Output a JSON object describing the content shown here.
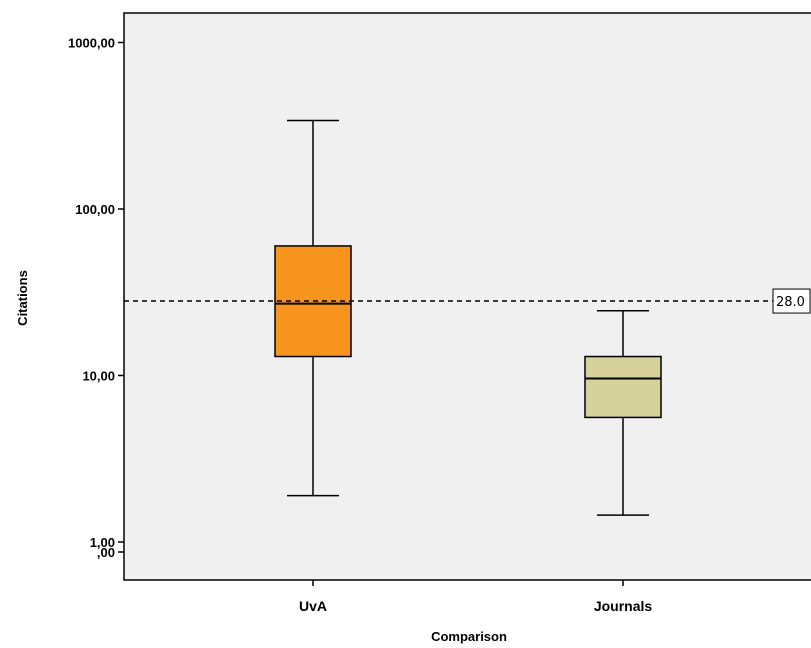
{
  "chart_data": {
    "type": "boxplot",
    "xlabel": "Comparison",
    "ylabel": "Citations",
    "y_scale": "log",
    "y_ticks": [
      {
        "value": 1000,
        "label": "1000,00"
      },
      {
        "value": 100,
        "label": "100,00"
      },
      {
        "value": 10,
        "label": "10,00"
      },
      {
        "value": 1,
        "label": "1,00"
      },
      {
        "value": 0,
        "label": ",00"
      }
    ],
    "categories": [
      "UvA",
      "Journals"
    ],
    "boxes": [
      {
        "category": "UvA",
        "whisker_low": 1.9,
        "q1": 13,
        "median": 27,
        "q3": 60,
        "whisker_high": 340,
        "color": "#f7941d"
      },
      {
        "category": "Journals",
        "whisker_low": 1.45,
        "q1": 5.6,
        "median": 9.6,
        "q3": 13,
        "whisker_high": 24.5,
        "color": "#d6d09a"
      }
    ],
    "reference_line": {
      "value": 28.0,
      "label": "28.0"
    },
    "plot_background": "#f0f0f0"
  }
}
